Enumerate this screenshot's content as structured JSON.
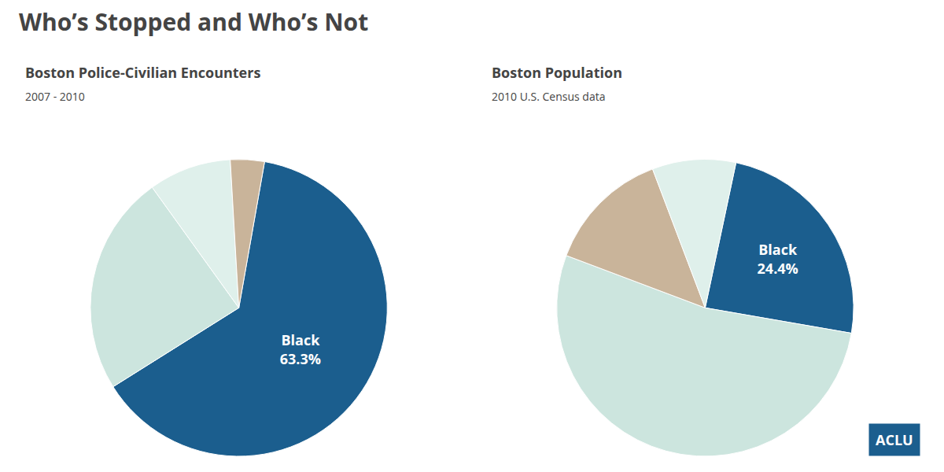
{
  "title": "Who’s Stopped and Who’s Not",
  "chart_data": [
    {
      "type": "pie",
      "title": "Boston Police-Civilian Encounters",
      "subtitle": "2007 - 2010",
      "categories": [
        "Black",
        null,
        null,
        null
      ],
      "values": [
        63.3,
        24.0,
        9.0,
        3.7
      ],
      "value_labels": [
        "63.3%",
        null,
        null,
        null
      ],
      "colors": [
        "#1b5e8e",
        "#cce5de",
        "#dff0eb",
        "#c9b49a"
      ],
      "data_labels": true,
      "legend": false
    },
    {
      "type": "pie",
      "title": "Boston Population",
      "subtitle": "2010 U.S. Census data",
      "categories": [
        "Black",
        null,
        null,
        null
      ],
      "values": [
        24.4,
        53.0,
        13.5,
        9.1
      ],
      "value_labels": [
        "24.4%",
        null,
        null,
        null
      ],
      "colors": [
        "#1b5e8e",
        "#cce5de",
        "#c9b49a",
        "#dff0eb"
      ],
      "data_labels": true,
      "legend": false
    }
  ],
  "annotations": [
    {
      "text": "ACLU",
      "color": "#1b5e8e"
    }
  ]
}
